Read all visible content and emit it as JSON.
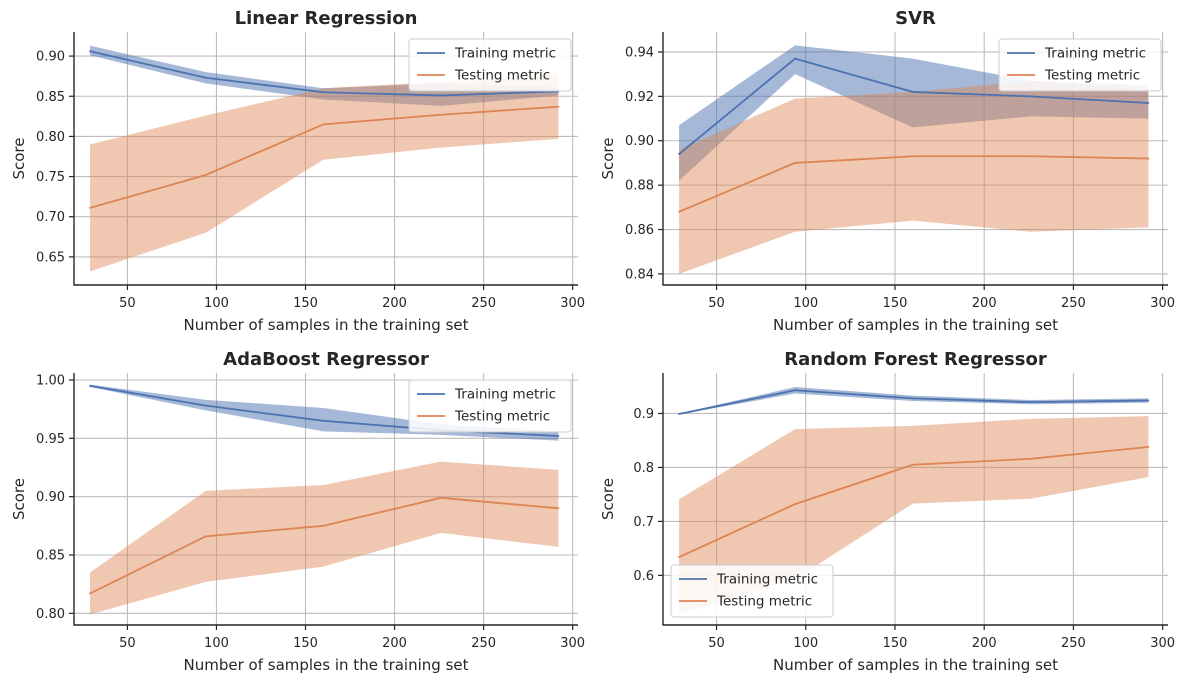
{
  "colors": {
    "train": "#4c72b0",
    "test": "#dd8452",
    "grid": "#bdbdbd",
    "axis": "#262626"
  },
  "chart_data": [
    {
      "type": "line",
      "title": "Linear Regression",
      "xlabel": "Number of samples in the training set",
      "ylabel": "Score",
      "xlim": [
        20,
        303
      ],
      "ylim": [
        0.615,
        0.93
      ],
      "xticks": [
        50,
        100,
        150,
        200,
        250,
        300
      ],
      "xtick_labels": [
        "50",
        "100",
        "150",
        "200",
        "250",
        "300"
      ],
      "yticks": [
        0.65,
        0.7,
        0.75,
        0.8,
        0.85,
        0.9
      ],
      "ytick_labels": [
        "0.65",
        "0.70",
        "0.75",
        "0.80",
        "0.85",
        "0.90"
      ],
      "grid": true,
      "legend_position": "upper-right",
      "x": [
        29,
        94,
        160,
        226,
        292
      ],
      "series": [
        {
          "name": "Training metric",
          "color_key": "train",
          "values": [
            0.906,
            0.873,
            0.855,
            0.851,
            0.856
          ],
          "lower": [
            0.901,
            0.866,
            0.846,
            0.838,
            0.851
          ],
          "upper": [
            0.913,
            0.88,
            0.86,
            0.866,
            0.861
          ]
        },
        {
          "name": "Testing metric",
          "color_key": "test",
          "values": [
            0.711,
            0.752,
            0.815,
            0.827,
            0.837
          ],
          "lower": [
            0.632,
            0.68,
            0.771,
            0.786,
            0.797
          ],
          "upper": [
            0.79,
            0.826,
            0.86,
            0.868,
            0.877
          ]
        }
      ]
    },
    {
      "type": "line",
      "title": "SVR",
      "xlabel": "Number of samples in the training set",
      "ylabel": "Score",
      "xlim": [
        20,
        303
      ],
      "ylim": [
        0.835,
        0.949
      ],
      "xticks": [
        50,
        100,
        150,
        200,
        250,
        300
      ],
      "xtick_labels": [
        "50",
        "100",
        "150",
        "200",
        "250",
        "300"
      ],
      "yticks": [
        0.84,
        0.86,
        0.88,
        0.9,
        0.92,
        0.94
      ],
      "ytick_labels": [
        "0.84",
        "0.86",
        "0.88",
        "0.90",
        "0.92",
        "0.94"
      ],
      "grid": true,
      "legend_position": "upper-right",
      "x": [
        29,
        94,
        160,
        226,
        292
      ],
      "series": [
        {
          "name": "Training metric",
          "color_key": "train",
          "values": [
            0.894,
            0.937,
            0.922,
            0.92,
            0.917
          ],
          "lower": [
            0.882,
            0.93,
            0.906,
            0.911,
            0.91
          ],
          "upper": [
            0.907,
            0.943,
            0.937,
            0.927,
            0.925
          ]
        },
        {
          "name": "Testing metric",
          "color_key": "test",
          "values": [
            0.868,
            0.89,
            0.893,
            0.893,
            0.892
          ],
          "lower": [
            0.84,
            0.859,
            0.864,
            0.859,
            0.861
          ],
          "upper": [
            0.896,
            0.919,
            0.922,
            0.927,
            0.923
          ]
        }
      ]
    },
    {
      "type": "line",
      "title": "AdaBoost Regressor",
      "xlabel": "Number of samples in the training set",
      "ylabel": "Score",
      "xlim": [
        20,
        303
      ],
      "ylim": [
        0.79,
        1.006
      ],
      "xticks": [
        50,
        100,
        150,
        200,
        250,
        300
      ],
      "xtick_labels": [
        "50",
        "100",
        "150",
        "200",
        "250",
        "300"
      ],
      "yticks": [
        0.8,
        0.85,
        0.9,
        0.95,
        1.0
      ],
      "ytick_labels": [
        "0.80",
        "0.85",
        "0.90",
        "0.95",
        "1.00"
      ],
      "grid": true,
      "legend_position": "upper-right",
      "x": [
        29,
        94,
        160,
        226,
        292
      ],
      "series": [
        {
          "name": "Training metric",
          "color_key": "train",
          "values": [
            0.995,
            0.978,
            0.965,
            0.957,
            0.952
          ],
          "lower": [
            0.994,
            0.974,
            0.956,
            0.953,
            0.948
          ],
          "upper": [
            0.996,
            0.983,
            0.976,
            0.962,
            0.956
          ]
        },
        {
          "name": "Testing metric",
          "color_key": "test",
          "values": [
            0.817,
            0.866,
            0.875,
            0.899,
            0.89
          ],
          "lower": [
            0.799,
            0.827,
            0.84,
            0.869,
            0.857
          ],
          "upper": [
            0.835,
            0.905,
            0.91,
            0.93,
            0.923
          ]
        }
      ]
    },
    {
      "type": "line",
      "title": "Random Forest Regressor",
      "xlabel": "Number of samples in the training set",
      "ylabel": "Score",
      "xlim": [
        20,
        303
      ],
      "ylim": [
        0.508,
        0.975
      ],
      "xticks": [
        50,
        100,
        150,
        200,
        250,
        300
      ],
      "xtick_labels": [
        "50",
        "100",
        "150",
        "200",
        "250",
        "300"
      ],
      "yticks": [
        0.6,
        0.7,
        0.8,
        0.9
      ],
      "ytick_labels": [
        "0.6",
        "0.7",
        "0.8",
        "0.9"
      ],
      "grid": true,
      "legend_position": "lower-left",
      "x": [
        29,
        94,
        160,
        226,
        292
      ],
      "series": [
        {
          "name": "Training metric",
          "color_key": "train",
          "values": [
            0.899,
            0.943,
            0.928,
            0.921,
            0.924
          ],
          "lower": [
            0.898,
            0.937,
            0.923,
            0.917,
            0.92
          ],
          "upper": [
            0.9,
            0.949,
            0.933,
            0.925,
            0.928
          ]
        },
        {
          "name": "Testing metric",
          "color_key": "test",
          "values": [
            0.634,
            0.732,
            0.805,
            0.816,
            0.838
          ],
          "lower": [
            0.528,
            0.593,
            0.733,
            0.742,
            0.782
          ],
          "upper": [
            0.741,
            0.871,
            0.877,
            0.89,
            0.895
          ]
        }
      ]
    }
  ]
}
